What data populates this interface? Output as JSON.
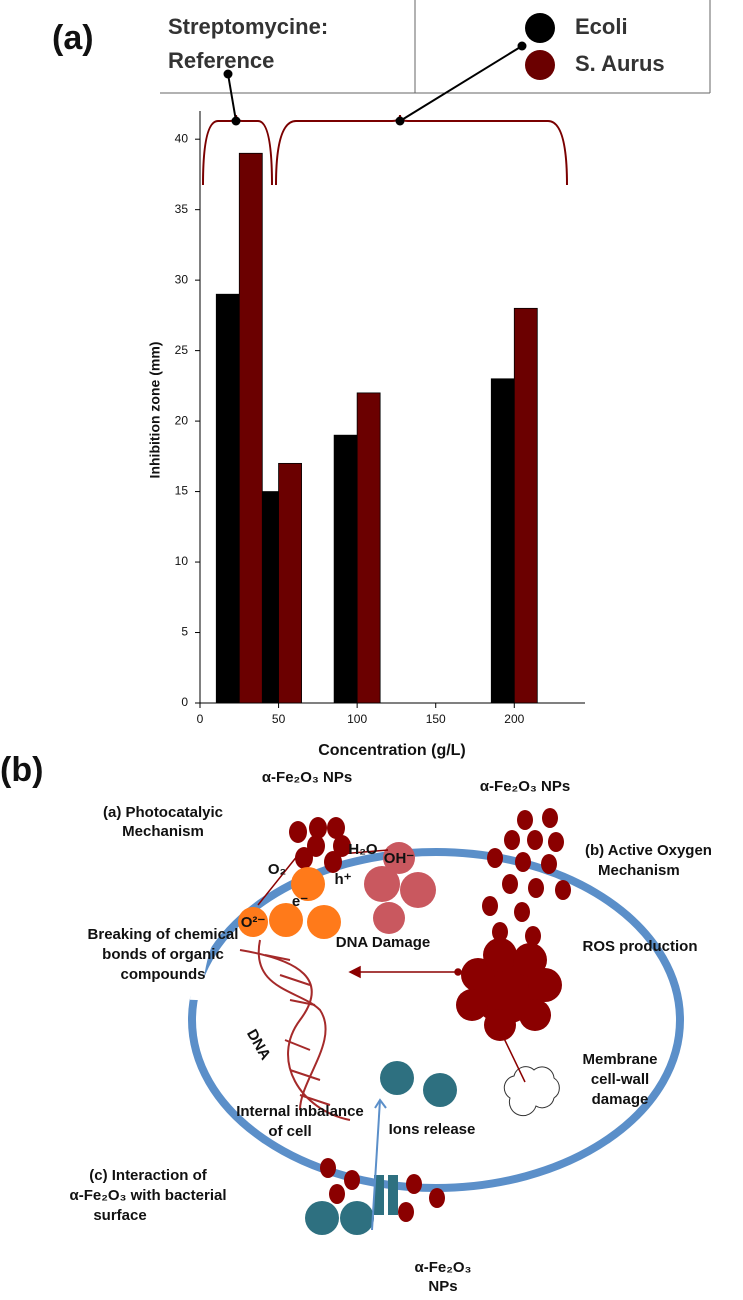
{
  "chart_data": {
    "type": "bar",
    "panel_label": "(a)",
    "annotation": [
      "Streptomycine:",
      "Reference"
    ],
    "x_label": "Concentration (g/L)",
    "y_label": "Inhibition zone (mm)",
    "x": [
      25,
      50,
      100,
      200
    ],
    "series": [
      {
        "name": "Ecoli",
        "color": "#000000",
        "values": [
          29,
          15,
          19,
          23
        ]
      },
      {
        "name": "S. Aurus",
        "color": "#6b0000",
        "values": [
          39,
          17,
          22,
          28
        ]
      }
    ],
    "xlim": [
      0,
      245
    ],
    "xticks": [
      0,
      50,
      100,
      150,
      200
    ],
    "ylim": [
      0,
      42
    ],
    "yticks": [
      0,
      5,
      10,
      15,
      20,
      25,
      30,
      35,
      40
    ],
    "grid": false,
    "legend": "top-right"
  },
  "diagram": {
    "panel_label": "(b)",
    "np_top": "α-Fe₂O₃ NPs",
    "photo": [
      "(a) Photocatalyic",
      "Mechanism"
    ],
    "h2o": "H₂O",
    "o2": "O₂",
    "hplus": "h⁺",
    "eminus": "e⁻",
    "o2minus": "O²⁻",
    "ohminus": "OH⁻",
    "np_right": "α-Fe₂O₃ NPs",
    "active": [
      "(b) Active Oxygen",
      "Mechanism"
    ],
    "breaking": [
      "Breaking of chemical",
      "bonds of organic",
      "compounds"
    ],
    "dna_damage": "DNA Damage",
    "ros": "ROS production",
    "dna": "DNA",
    "membrane": [
      "Membrane",
      "cell-wall",
      "damage"
    ],
    "internal": [
      "Internal inbalance",
      "of cell"
    ],
    "ions": "Ions release",
    "interaction": [
      "(c) Interaction of",
      "α-Fe₂O₃  with bacterial",
      "surface"
    ],
    "np_bottom": [
      "α-Fe₂O₃",
      "NPs"
    ]
  }
}
